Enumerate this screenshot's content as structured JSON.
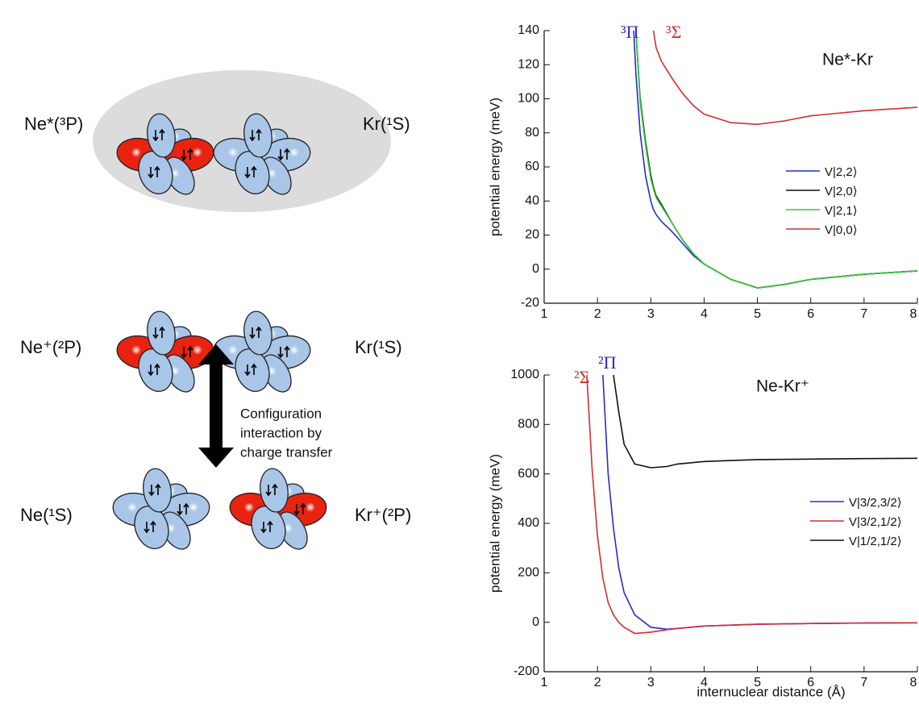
{
  "diagram": {
    "labels": [
      "Ne*(³P)",
      "Kr(¹S)",
      "Ne⁺(²P)",
      "Kr(¹S)",
      "Ne(¹S)",
      "Kr⁺(²P)"
    ],
    "arrow_text": [
      "Configuration",
      "interaction by",
      "charge transfer"
    ]
  },
  "chart_data": [
    {
      "type": "line",
      "ylabel": "potential energy (meV)",
      "annotations": [
        {
          "text": "³Π",
          "color": "#2a2ad0"
        },
        {
          "text": "³Σ",
          "color": "#d03030"
        },
        {
          "text": "Ne*-Kr",
          "color": "#111111"
        }
      ],
      "xlim": [
        1,
        8
      ],
      "xticks": [
        1,
        2,
        3,
        4,
        5,
        6,
        7,
        8
      ],
      "ylim": [
        -20,
        140
      ],
      "yticks": [
        -20,
        0,
        20,
        40,
        60,
        80,
        100,
        120,
        140
      ],
      "x": [
        2.68,
        2.72,
        2.8,
        2.9,
        3.0,
        3.05,
        3.1,
        3.2,
        3.4,
        3.6,
        3.8,
        4.0,
        4.5,
        5.0,
        5.5,
        6.0,
        7.0,
        8.0
      ],
      "series": [
        {
          "name": "V|2,2⟩",
          "color": "#2a2ad0",
          "values": [
            140,
            115,
            80,
            55,
            40,
            35,
            32,
            28,
            22,
            15,
            8,
            3,
            -6,
            -11,
            -9,
            -6,
            -3,
            -1
          ]
        },
        {
          "name": "V|2,0⟩",
          "color": "#111111",
          "values": [
            null,
            140,
            100,
            75,
            55,
            48,
            43,
            38,
            27,
            17,
            9,
            3,
            -6,
            -11,
            -9,
            -6,
            -3,
            -1
          ]
        },
        {
          "name": "V|2,1⟩",
          "color": "#33cc33",
          "values": [
            null,
            140,
            98,
            73,
            53,
            47,
            42,
            37,
            27,
            17,
            9,
            3,
            -6,
            -11,
            -9,
            -6,
            -3,
            -1
          ]
        },
        {
          "name": "V|0,0⟩",
          "color": "#d03030",
          "values": [
            null,
            null,
            null,
            null,
            null,
            140,
            130,
            122,
            112,
            103,
            96,
            91,
            86,
            85,
            87,
            90,
            93,
            95
          ]
        }
      ]
    },
    {
      "type": "line",
      "ylabel": "potential energy (meV)",
      "xlabel": "internuclear distance (Å)",
      "annotations": [
        {
          "text": "²Π",
          "color": "#2a2ad0"
        },
        {
          "text": "²Σ",
          "color": "#d03030"
        },
        {
          "text": "Ne-Kr⁺",
          "color": "#111111"
        }
      ],
      "xlim": [
        1,
        8
      ],
      "xticks": [
        1,
        2,
        3,
        4,
        5,
        6,
        7,
        8
      ],
      "ylim": [
        -200,
        1000
      ],
      "yticks": [
        -200,
        0,
        200,
        400,
        600,
        800,
        1000
      ],
      "x": [
        1.8,
        1.9,
        2.0,
        2.1,
        2.2,
        2.3,
        2.4,
        2.5,
        2.7,
        3.0,
        3.3,
        3.5,
        4.0,
        5.0,
        6.0,
        7.0,
        8.0
      ],
      "series": [
        {
          "name": "V|3/2,3/2⟩",
          "color": "#2a2ad0",
          "values": [
            null,
            null,
            null,
            1000,
            600,
            380,
            220,
            120,
            30,
            -20,
            -28,
            -25,
            -15,
            -8,
            -5,
            -3,
            -2
          ]
        },
        {
          "name": "V|3/2,1/2⟩",
          "color": "#d03030",
          "values": [
            1000,
            620,
            350,
            180,
            80,
            30,
            0,
            -20,
            -45,
            -40,
            -30,
            -25,
            -15,
            -8,
            -5,
            -3,
            -2
          ]
        },
        {
          "name": "V|1/2,1/2⟩",
          "color": "#111111",
          "values": [
            null,
            null,
            null,
            null,
            null,
            1000,
            850,
            720,
            640,
            625,
            630,
            640,
            650,
            658,
            660,
            662,
            663
          ]
        }
      ]
    }
  ]
}
